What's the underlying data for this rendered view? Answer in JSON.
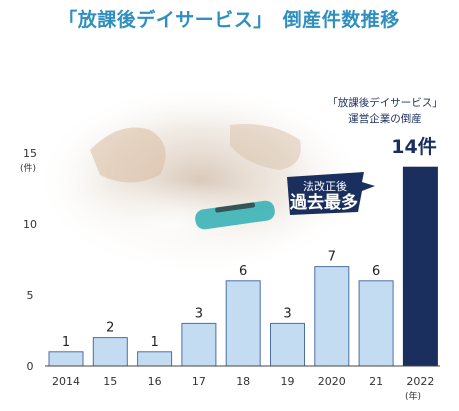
{
  "chart_data": {
    "type": "bar",
    "title": "「放課後デイサービス」　倒産件数推移",
    "categories": [
      "2014",
      "15",
      "16",
      "17",
      "18",
      "19",
      "2020",
      "21",
      "2022"
    ],
    "values": [
      1,
      2,
      1,
      3,
      6,
      3,
      7,
      6,
      14
    ],
    "value_labels": [
      "1",
      "2",
      "1",
      "3",
      "6",
      "3",
      "7",
      "6",
      ""
    ],
    "ylim": [
      0,
      15
    ],
    "yticks": [
      "0",
      "5",
      "10",
      "15"
    ],
    "y_unit": "(件)",
    "x_unit": "(年)",
    "grid": false,
    "highlight_index": 8,
    "annotation": {
      "line1": "「放課後デイサービス」",
      "line2": "運営企業の倒産",
      "count": "14件"
    },
    "callout": {
      "line1": "法改正後",
      "line2": "過去最多"
    }
  },
  "colors": {
    "title": "#2f8fbd",
    "bar": "#c3dcf1",
    "bar_border": "#4d6ea4",
    "highlight_bar": "#1b2f5e",
    "axis": "#444444",
    "callout": "#1b2f5e"
  }
}
